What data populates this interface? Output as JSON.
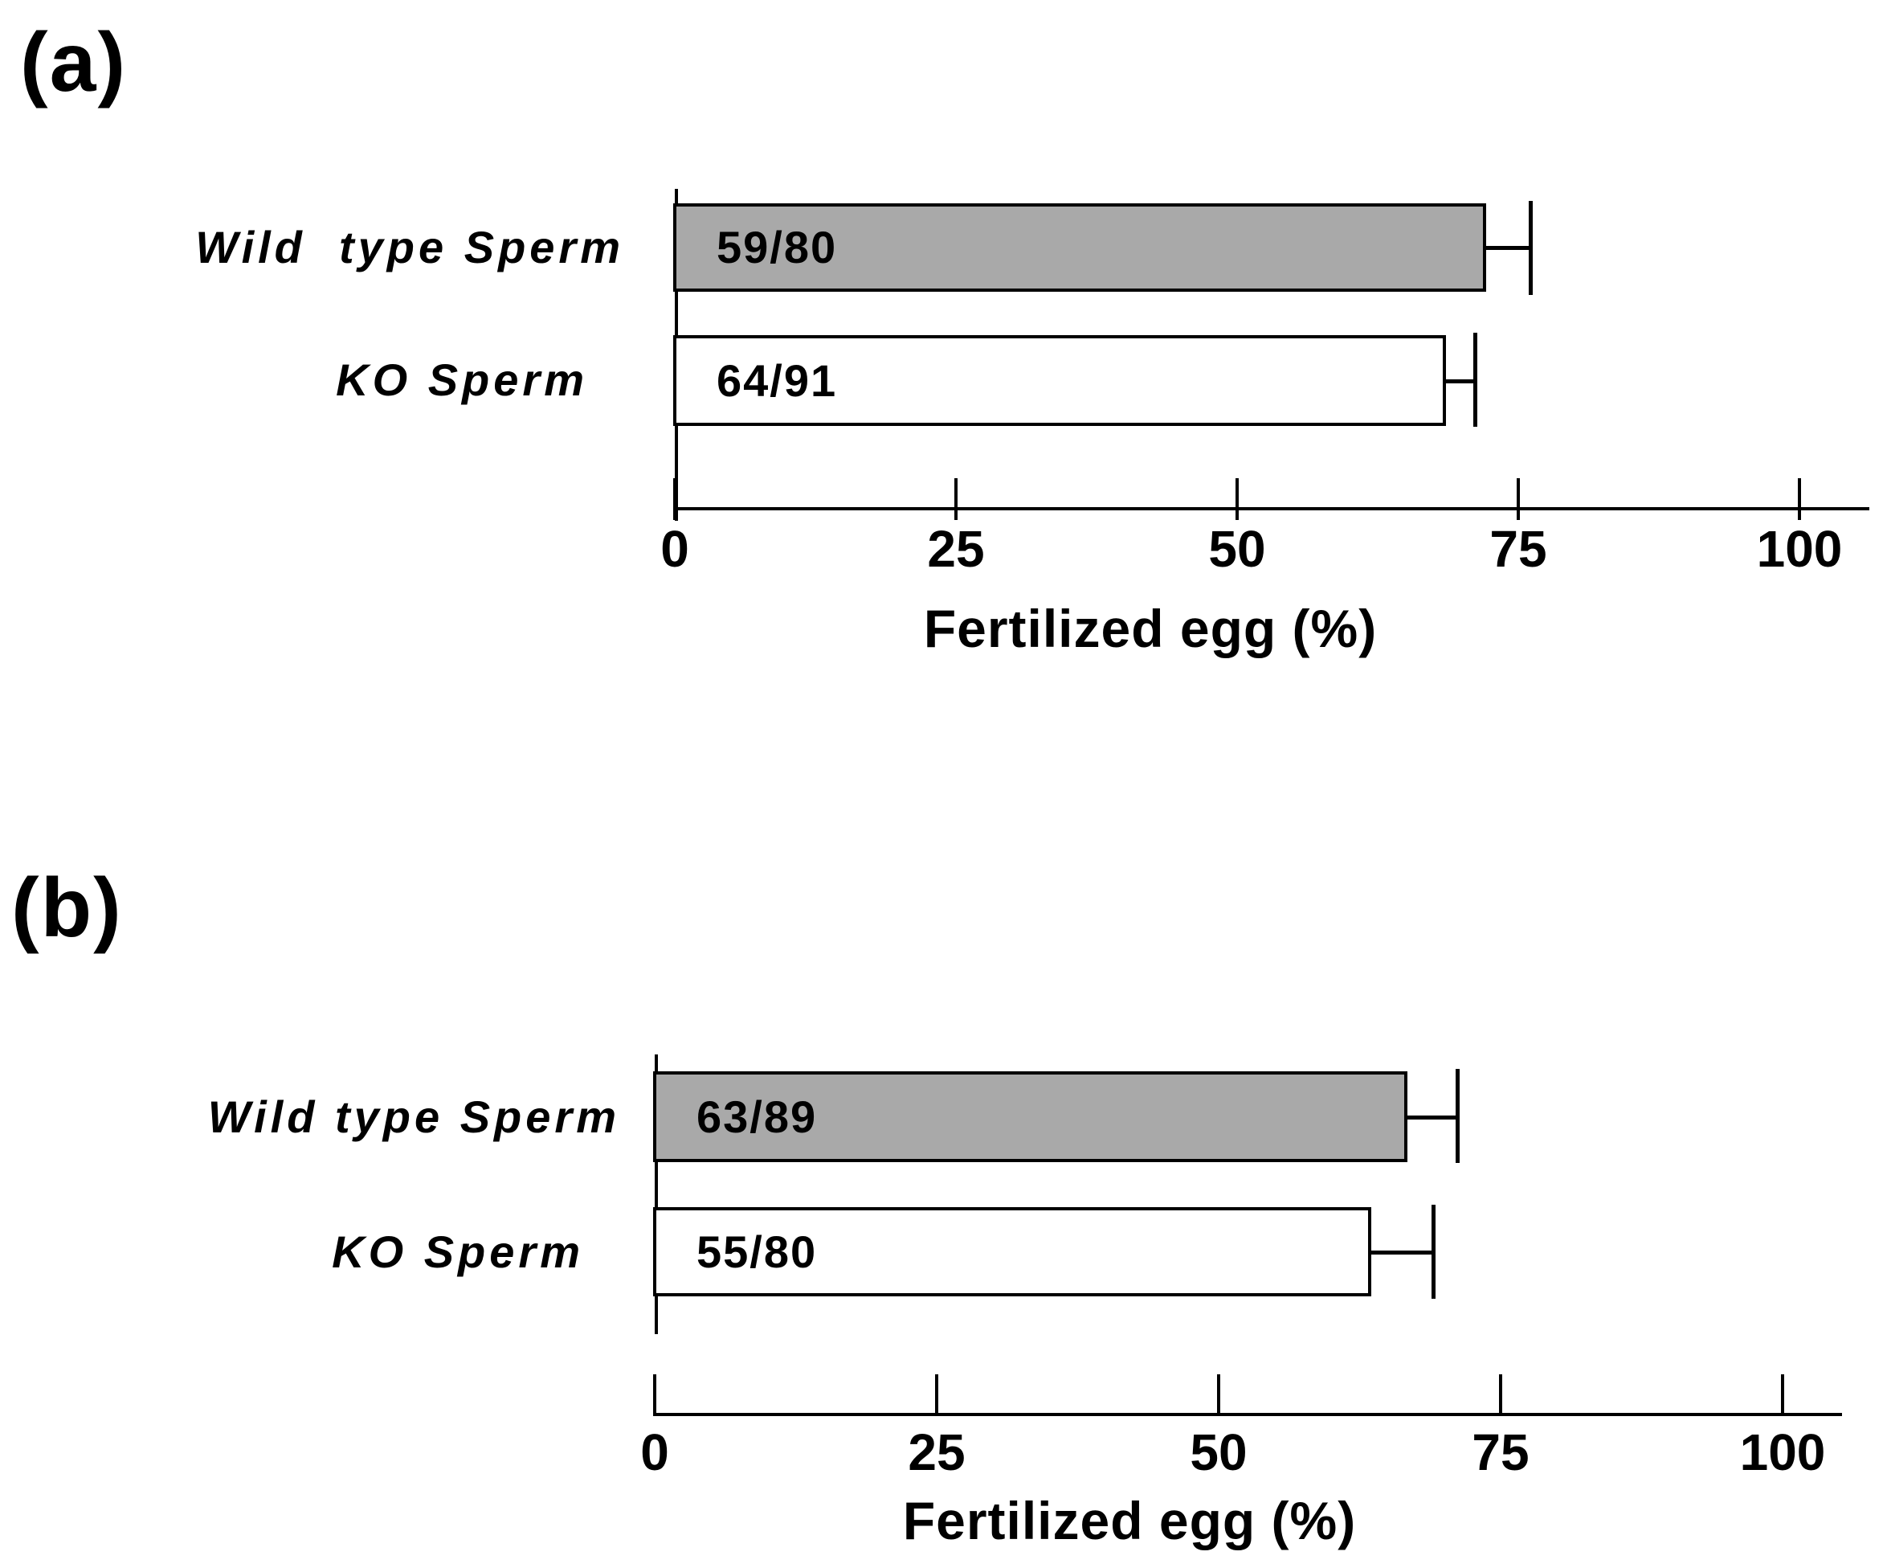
{
  "figure": {
    "background": "#ffffff",
    "text_color": "#000000",
    "bar_gray": "#a9a9a9",
    "bar_white": "#ffffff"
  },
  "chart_data": [
    {
      "type": "bar",
      "orientation": "horizontal",
      "panel_letter": "(a)",
      "xlabel": "Fertilized egg (%)",
      "xlim": [
        0,
        106
      ],
      "xticks": [
        0,
        25,
        50,
        75,
        100
      ],
      "grid": false,
      "legend": false,
      "categories": [
        "Wild  type Sperm",
        "KO Sperm"
      ],
      "series": [
        {
          "name": "Fertilized egg (%)",
          "values": [
            72.0,
            68.4
          ],
          "error_high": [
            75.9,
            71.0
          ],
          "bar_labels": [
            "59/80",
            "64/91"
          ],
          "bar_fills": [
            "#a9a9a9",
            "#ffffff"
          ],
          "bar_border": "#000000"
        }
      ]
    },
    {
      "type": "bar",
      "orientation": "horizontal",
      "panel_letter": "(b)",
      "xlabel": "Fertilized egg (%)",
      "xlim": [
        0,
        106
      ],
      "xticks": [
        0,
        25,
        50,
        75,
        100
      ],
      "grid": false,
      "legend": false,
      "categories": [
        "Wild type Sperm",
        "KO Sperm"
      ],
      "series": [
        {
          "name": "Fertilized egg (%)",
          "values": [
            66.6,
            63.4
          ],
          "error_high": [
            71.0,
            68.9
          ],
          "bar_labels": [
            "63/89",
            "55/80"
          ],
          "bar_fills": [
            "#a9a9a9",
            "#ffffff"
          ],
          "bar_border": "#000000"
        }
      ]
    }
  ]
}
